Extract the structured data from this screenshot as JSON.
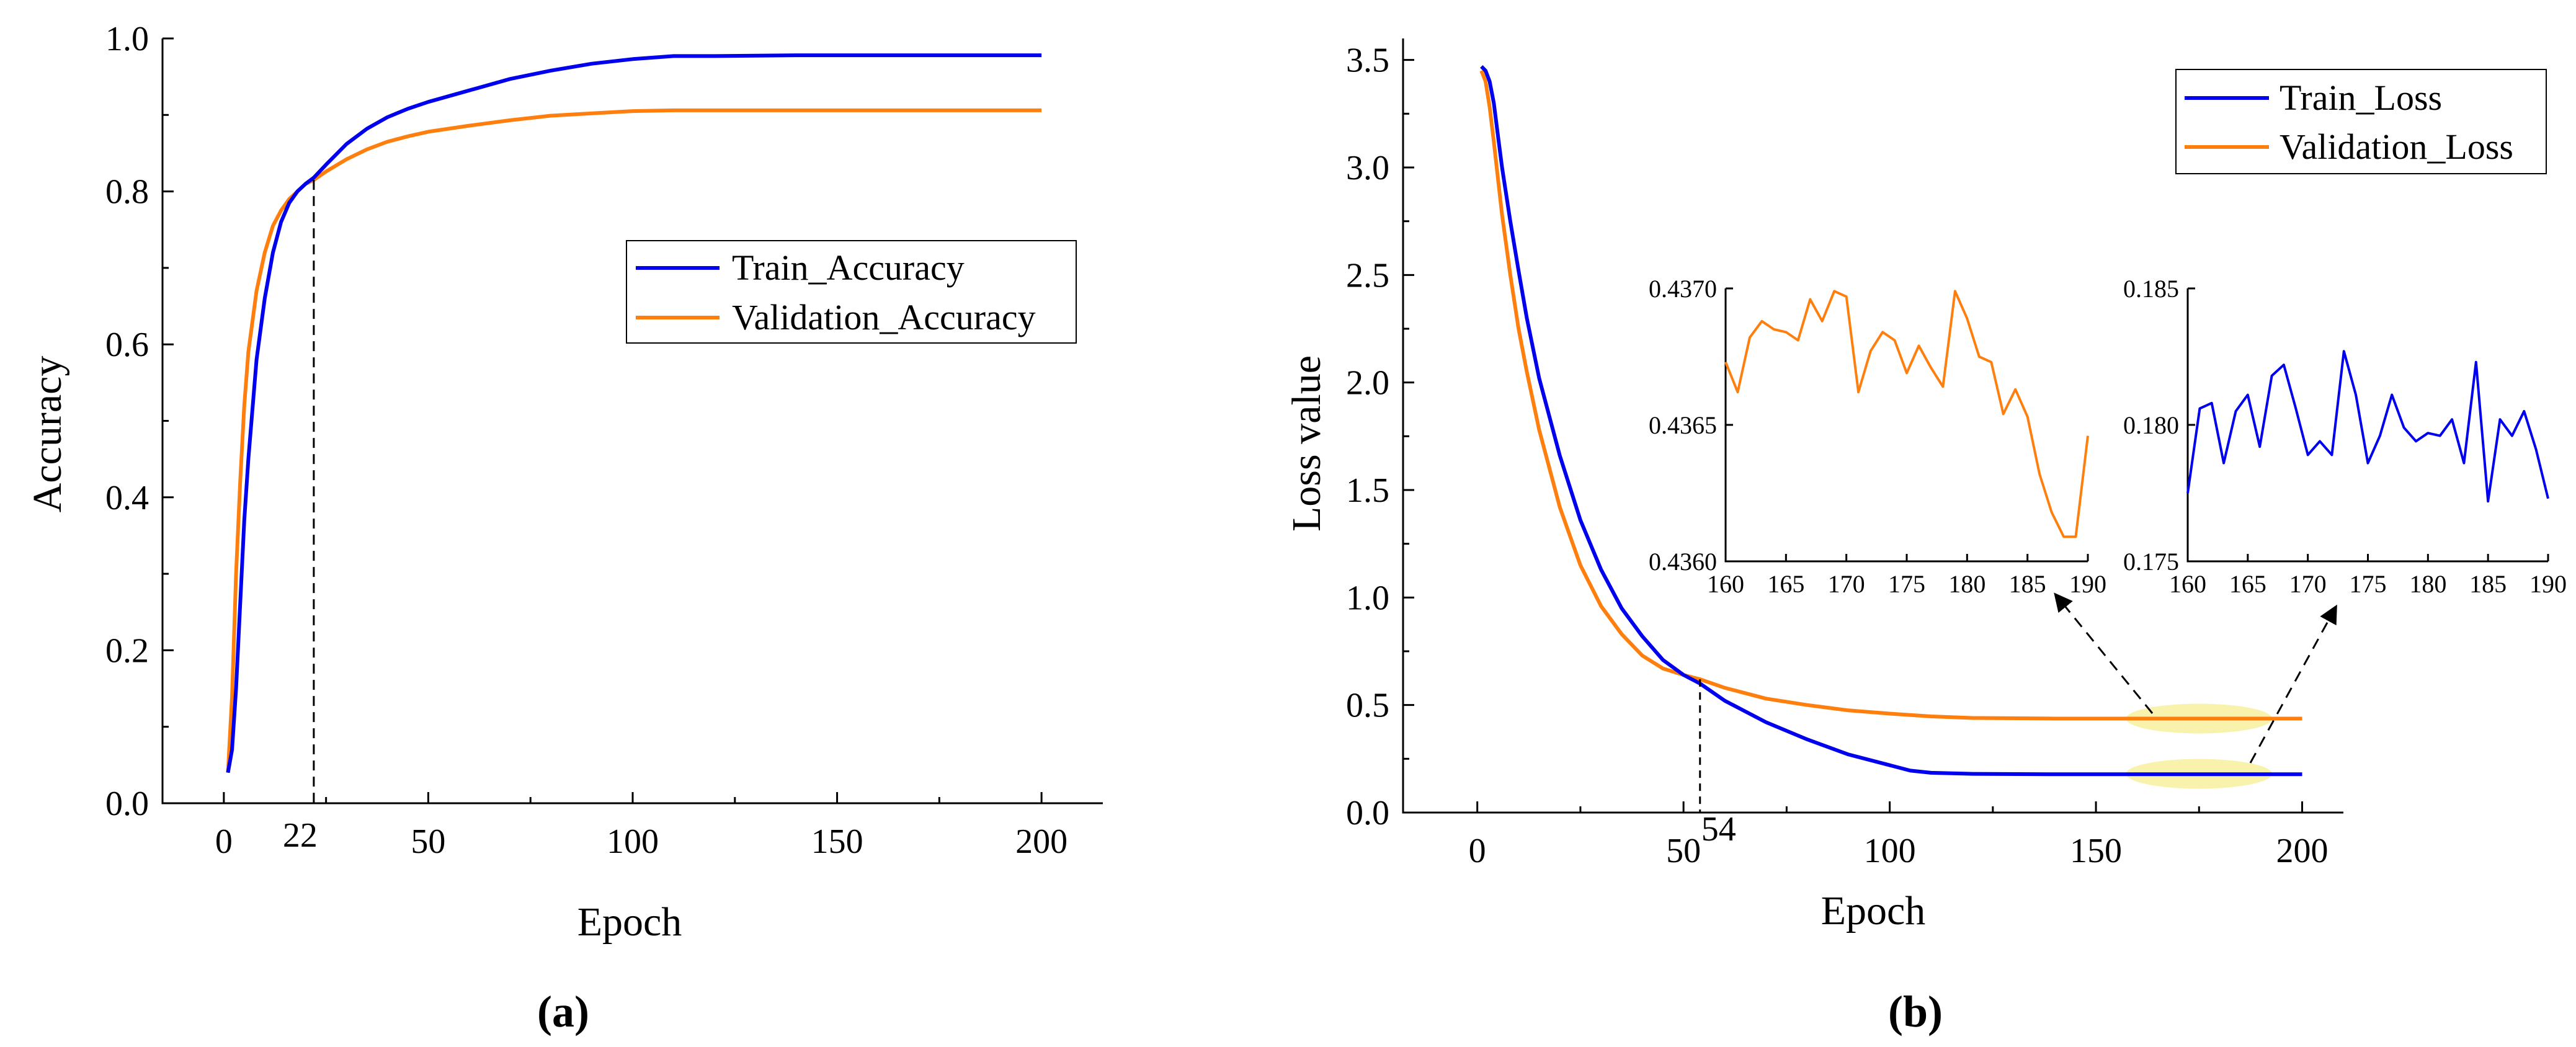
{
  "colors": {
    "train": "#0000ee",
    "validation": "#ff7f0e",
    "highlight": "#f5ec8a"
  },
  "chart_data": [
    {
      "type": "line",
      "panel_label_text": "(a)",
      "xlabel": "Epoch",
      "ylabel": "Accuracy",
      "xlim": [
        -15,
        215
      ],
      "ylim": [
        0,
        1.0
      ],
      "xticks": [
        0,
        50,
        100,
        150,
        200
      ],
      "yticks": [
        0.0,
        0.2,
        0.4,
        0.6,
        0.8,
        1.0
      ],
      "ytick_labels": [
        "0.0",
        "0.2",
        "0.4",
        "0.6",
        "0.8",
        "1.0"
      ],
      "annotation": {
        "x": 22,
        "y": 0.815,
        "label": "22"
      },
      "legend": {
        "position": "center-right",
        "entries": [
          "Train_Accuracy",
          "Validation_Accuracy"
        ]
      },
      "series": [
        {
          "name": "Train_Accuracy",
          "x": [
            1,
            2,
            3,
            4,
            5,
            6,
            8,
            10,
            12,
            14,
            16,
            18,
            20,
            22,
            25,
            30,
            35,
            40,
            45,
            50,
            60,
            70,
            80,
            90,
            100,
            110,
            120,
            140,
            160,
            180,
            200
          ],
          "y": [
            0.04,
            0.07,
            0.15,
            0.26,
            0.37,
            0.45,
            0.58,
            0.66,
            0.72,
            0.76,
            0.785,
            0.8,
            0.81,
            0.818,
            0.835,
            0.862,
            0.882,
            0.897,
            0.908,
            0.917,
            0.932,
            0.947,
            0.958,
            0.967,
            0.973,
            0.977,
            0.977,
            0.978,
            0.978,
            0.978,
            0.978
          ]
        },
        {
          "name": "Validation_Accuracy",
          "x": [
            1,
            2,
            3,
            4,
            5,
            6,
            8,
            10,
            12,
            14,
            16,
            18,
            20,
            22,
            25,
            30,
            35,
            40,
            45,
            50,
            60,
            70,
            80,
            90,
            100,
            110,
            120,
            140,
            160,
            180,
            200
          ],
          "y": [
            0.04,
            0.14,
            0.3,
            0.42,
            0.52,
            0.59,
            0.67,
            0.72,
            0.755,
            0.775,
            0.79,
            0.8,
            0.81,
            0.815,
            0.826,
            0.842,
            0.855,
            0.865,
            0.872,
            0.878,
            0.886,
            0.893,
            0.899,
            0.902,
            0.905,
            0.906,
            0.906,
            0.906,
            0.906,
            0.906,
            0.906
          ]
        }
      ]
    },
    {
      "type": "line",
      "panel_label_text": "(b)",
      "xlabel": "Epoch",
      "ylabel": "Loss value",
      "xlim": [
        -18,
        210
      ],
      "ylim": [
        0,
        3.6
      ],
      "xticks": [
        0,
        50,
        100,
        150,
        200
      ],
      "yticks": [
        0.0,
        0.5,
        1.0,
        1.5,
        2.0,
        2.5,
        3.0,
        3.5
      ],
      "ytick_labels": [
        "0.0",
        "0.5",
        "1.0",
        "1.5",
        "2.0",
        "2.5",
        "3.0",
        "3.5"
      ],
      "annotation": {
        "x": 54,
        "y": 0.62,
        "label": "54"
      },
      "legend": {
        "position": "top-right",
        "entries": [
          "Train_Loss",
          "Validation_Loss"
        ]
      },
      "series": [
        {
          "name": "Train_Loss",
          "x": [
            1,
            2,
            3,
            4,
            5,
            6,
            8,
            10,
            12,
            15,
            20,
            25,
            30,
            35,
            40,
            45,
            50,
            54,
            60,
            70,
            80,
            90,
            100,
            105,
            110,
            120,
            140,
            160,
            180,
            200
          ],
          "y": [
            3.47,
            3.45,
            3.4,
            3.3,
            3.15,
            3.0,
            2.75,
            2.52,
            2.3,
            2.02,
            1.66,
            1.36,
            1.13,
            0.95,
            0.82,
            0.71,
            0.64,
            0.6,
            0.52,
            0.42,
            0.34,
            0.27,
            0.22,
            0.195,
            0.185,
            0.18,
            0.178,
            0.178,
            0.178,
            0.178
          ]
        },
        {
          "name": "Validation_Loss",
          "x": [
            1,
            2,
            3,
            4,
            5,
            6,
            8,
            10,
            12,
            15,
            20,
            25,
            30,
            35,
            40,
            45,
            50,
            54,
            60,
            70,
            80,
            90,
            100,
            110,
            120,
            140,
            160,
            180,
            200
          ],
          "y": [
            3.45,
            3.4,
            3.28,
            3.12,
            2.95,
            2.78,
            2.5,
            2.25,
            2.05,
            1.78,
            1.42,
            1.15,
            0.96,
            0.83,
            0.73,
            0.67,
            0.64,
            0.62,
            0.58,
            0.53,
            0.5,
            0.475,
            0.46,
            0.447,
            0.44,
            0.437,
            0.437,
            0.437,
            0.437
          ]
        }
      ],
      "highlights": [
        {
          "x_range": [
            160,
            190
          ],
          "y": 0.437
        },
        {
          "x_range": [
            160,
            190
          ],
          "y": 0.18
        }
      ],
      "insets": [
        {
          "series": "Validation_Loss",
          "xlim": [
            160,
            190
          ],
          "ylim": [
            0.436,
            0.437
          ],
          "xticks": [
            160,
            165,
            170,
            175,
            180,
            185,
            190
          ],
          "yticks": [
            0.436,
            0.4365,
            0.437
          ],
          "ytick_labels": [
            "0.4360",
            "0.4365",
            "0.4370"
          ],
          "x": [
            160,
            161,
            162,
            163,
            164,
            165,
            166,
            167,
            168,
            169,
            170,
            171,
            172,
            173,
            174,
            175,
            176,
            177,
            178,
            179,
            180,
            181,
            182,
            183,
            184,
            185,
            186,
            187,
            188,
            189,
            190
          ],
          "y": [
            0.43673,
            0.43662,
            0.43682,
            0.43688,
            0.43685,
            0.43684,
            0.43681,
            0.43696,
            0.43688,
            0.43699,
            0.43697,
            0.43662,
            0.43677,
            0.43684,
            0.43681,
            0.43669,
            0.43679,
            0.43671,
            0.43664,
            0.43699,
            0.43689,
            0.43675,
            0.43673,
            0.43654,
            0.43663,
            0.43653,
            0.43632,
            0.43618,
            0.43609,
            0.43609,
            0.43646
          ]
        },
        {
          "series": "Train_Loss",
          "xlim": [
            160,
            190
          ],
          "ylim": [
            0.175,
            0.185
          ],
          "xticks": [
            160,
            165,
            170,
            175,
            180,
            185,
            190
          ],
          "yticks": [
            0.175,
            0.18,
            0.185
          ],
          "ytick_labels": [
            "0.175",
            "0.180",
            "0.185"
          ],
          "x": [
            160,
            161,
            162,
            163,
            164,
            165,
            166,
            167,
            168,
            169,
            170,
            171,
            172,
            173,
            174,
            175,
            176,
            177,
            178,
            179,
            180,
            181,
            182,
            183,
            184,
            185,
            186,
            187,
            188,
            189,
            190
          ],
          "y": [
            0.1775,
            0.1806,
            0.1808,
            0.1786,
            0.1805,
            0.1811,
            0.1792,
            0.1818,
            0.1822,
            0.1806,
            0.1789,
            0.1794,
            0.1789,
            0.1827,
            0.1811,
            0.1786,
            0.1796,
            0.1811,
            0.1799,
            0.1794,
            0.1797,
            0.1796,
            0.1802,
            0.1786,
            0.1823,
            0.1772,
            0.1802,
            0.1796,
            0.1805,
            0.1791,
            0.1773
          ]
        }
      ]
    }
  ]
}
